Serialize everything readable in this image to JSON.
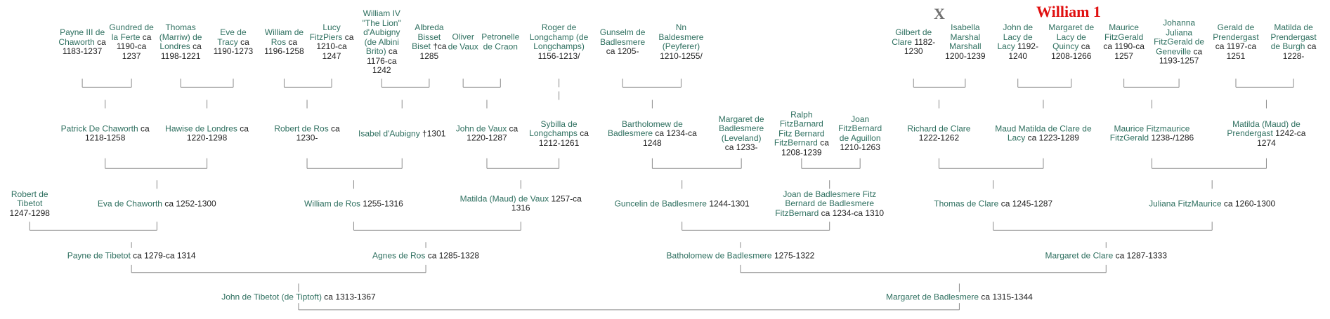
{
  "annotations": [
    "X",
    "William 1"
  ],
  "nodes": [
    {
      "name": "Payne III de Chaworth",
      "dates": "ca 1183-1237"
    },
    {
      "name": "Gundred de la Ferte",
      "dates": "ca 1190-ca 1237"
    },
    {
      "name": "Thomas (Marriw) de Londres",
      "dates": "ca 1198-1221"
    },
    {
      "name": "Eve de Tracy",
      "dates": "ca 1190-1273"
    },
    {
      "name": "William de Ros",
      "dates": "ca 1196-1258"
    },
    {
      "name": "Lucy FitzPiers",
      "dates": "ca 1210-ca 1247"
    },
    {
      "name": "William IV \"The Lion\" d'Aubigny (de Albini Brito)",
      "dates": "ca 1176-ca 1242"
    },
    {
      "name": "Albreda Bisset Biset",
      "dates": "†ca 1285"
    },
    {
      "name": "Oliver de Vaux"
    },
    {
      "name": "Petronelle de Craon"
    },
    {
      "name": "Roger de Longchamp (de Longchamps)",
      "dates": "1156-1213/"
    },
    {
      "name": "Gunselm de Badlesmere",
      "dates": "ca 1205-"
    },
    {
      "name": "Nn Baldesmere (Peyferer)",
      "dates": "1210-1255/"
    },
    {
      "name": "Gilbert de Clare",
      "dates": "1182-1230"
    },
    {
      "name": "Isabella Marshal Marshall",
      "dates": "1200-1239"
    },
    {
      "name": "John de Lacy de Lacy",
      "dates": "1192-1240"
    },
    {
      "name": "Margaret de Lacy de Quincy",
      "dates": "ca 1208-1266"
    },
    {
      "name": "Maurice FitzGerald",
      "dates": "ca 1190-ca 1257"
    },
    {
      "name": "Johanna Juliana FitzGerald de Geneville",
      "dates": "ca 1193-1257"
    },
    {
      "name": "Gerald de Prendergast",
      "dates": "ca 1197-ca 1251"
    },
    {
      "name": "Matilda de Prendergast de Burgh",
      "dates": "ca 1228-"
    },
    {
      "name": "Patrick De Chaworth",
      "dates": "ca 1218-1258"
    },
    {
      "name": "Hawise de Londres",
      "dates": "ca 1220-1298"
    },
    {
      "name": "Robert de Ros",
      "dates": "ca 1230-"
    },
    {
      "name": "Isabel d'Aubigny",
      "dates": "†1301"
    },
    {
      "name": "John de Vaux",
      "dates": "ca 1220-1287"
    },
    {
      "name": "Sybilla de Longchamps",
      "dates": "ca 1212-1261"
    },
    {
      "name": "Bartholomew de Badlesmere",
      "dates": "ca 1234-ca 1248"
    },
    {
      "name": "Margaret de Badlesmere (Leveland)",
      "dates": "ca 1233-"
    },
    {
      "name": "Ralph FitzBarnard Fitz Bernard FitzBernard",
      "dates": "ca 1208-1239"
    },
    {
      "name": "Joan FitzBernard de Aguillon",
      "dates": "1210-1263"
    },
    {
      "name": "Richard de Clare",
      "dates": "1222-1262"
    },
    {
      "name": "Maud Matilda de Clare de Lacy",
      "dates": "ca 1223-1289"
    },
    {
      "name": "Maurice Fitzmaurice FitzGerald",
      "dates": "1238-/1286"
    },
    {
      "name": "Matilda (Maud) de Prendergast",
      "dates": "1242-ca 1274"
    },
    {
      "name": "Robert de Tibetot",
      "dates": "1247-1298"
    },
    {
      "name": "Eva de Chaworth",
      "dates": "ca 1252-1300"
    },
    {
      "name": "William de Ros",
      "dates": "1255-1316"
    },
    {
      "name": "Matilda (Maud) de Vaux",
      "dates": "1257-ca 1316"
    },
    {
      "name": "Guncelin de Badlesmere",
      "dates": "1244-1301"
    },
    {
      "name": "Joan de Badlesmere Fitz Bernard de Badlesmere FitzBernard",
      "dates": "ca 1234-ca 1310"
    },
    {
      "name": "Thomas de Clare",
      "dates": "ca 1245-1287"
    },
    {
      "name": "Juliana FitzMaurice",
      "dates": "ca 1260-1300"
    },
    {
      "name": "Payne de Tibetot",
      "dates": "ca 1279-ca 1314"
    },
    {
      "name": "Agnes de Ros",
      "dates": "ca 1285-1328"
    },
    {
      "name": "Batholomew de Badlesmere",
      "dates": "1275-1322"
    },
    {
      "name": "Margaret de Clare",
      "dates": "ca 1287-1333"
    },
    {
      "name": "John de Tibetot (de Tiptoft)",
      "dates": "ca 1313-1367"
    },
    {
      "name": "Margaret de Badlesmere",
      "dates": "ca 1315-1344"
    }
  ]
}
